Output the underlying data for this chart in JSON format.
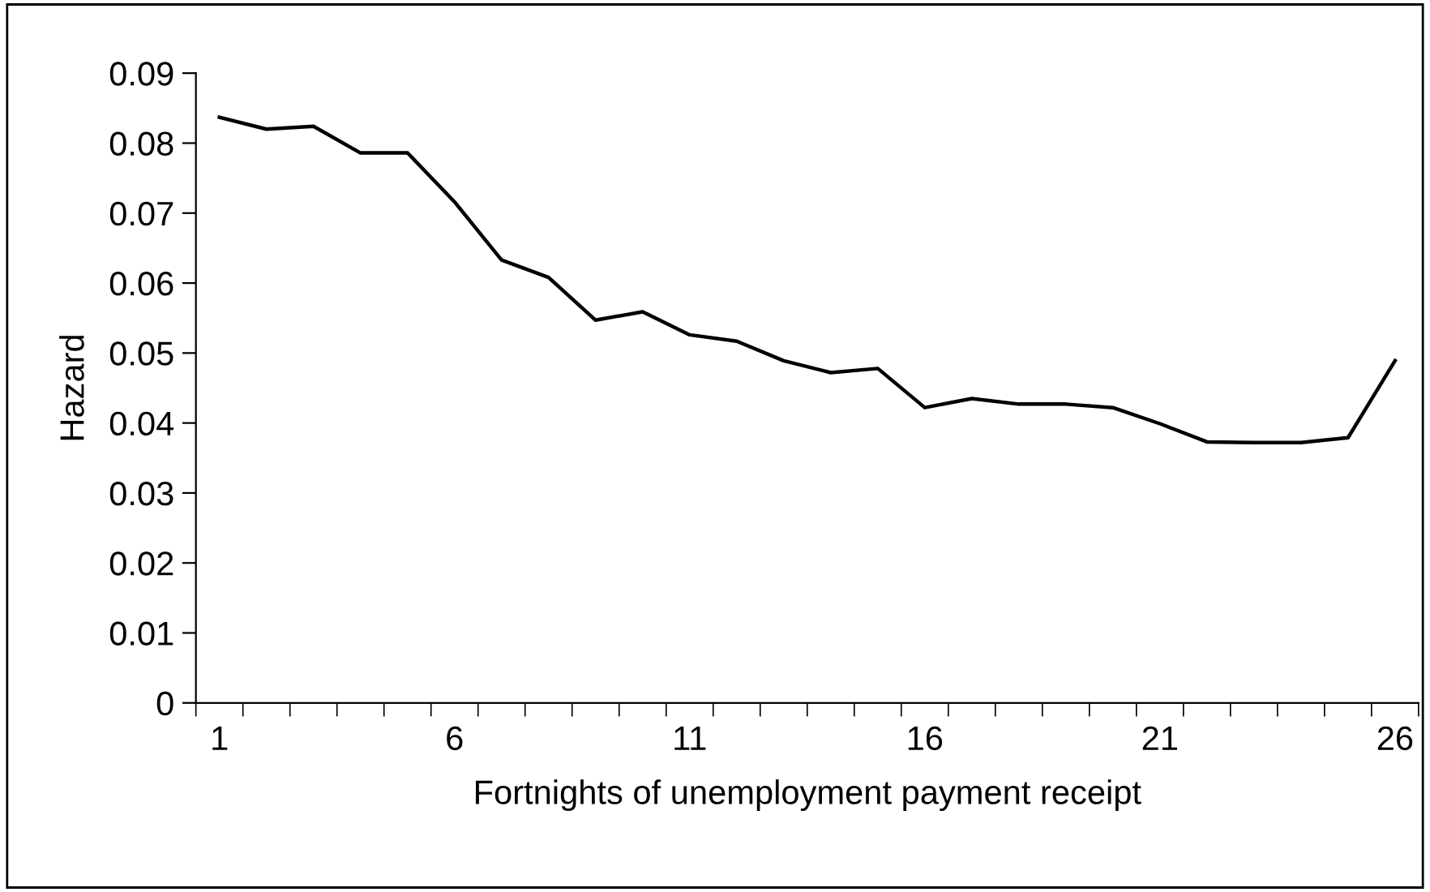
{
  "chart_data": {
    "type": "line",
    "xlabel": "Fortnights of unemployment payment receipt",
    "ylabel": "Hazard",
    "categories": [
      "1",
      null,
      null,
      null,
      null,
      "6",
      null,
      null,
      null,
      null,
      "11",
      null,
      null,
      null,
      null,
      "16",
      null,
      null,
      null,
      null,
      "21",
      null,
      null,
      null,
      null,
      "26"
    ],
    "series": [
      {
        "color": "#000000",
        "values": [
          0.0837,
          0.082,
          0.0824,
          0.0786,
          0.0786,
          0.0716,
          0.0633,
          0.0608,
          0.0547,
          0.0559,
          0.0526,
          0.0517,
          0.0489,
          0.0472,
          0.0478,
          0.0422,
          0.0435,
          0.0427,
          0.0427,
          0.0422,
          0.0399,
          0.0373,
          0.0372,
          0.0372,
          0.0379,
          0.0489
        ]
      }
    ],
    "ylim": [
      0,
      0.09
    ],
    "yticks": [
      0,
      0.01,
      0.02,
      0.03,
      0.04,
      0.05,
      0.06,
      0.07,
      0.08,
      0.09
    ],
    "grid": false,
    "legend": false,
    "marker": "none",
    "line_style": "solid"
  }
}
